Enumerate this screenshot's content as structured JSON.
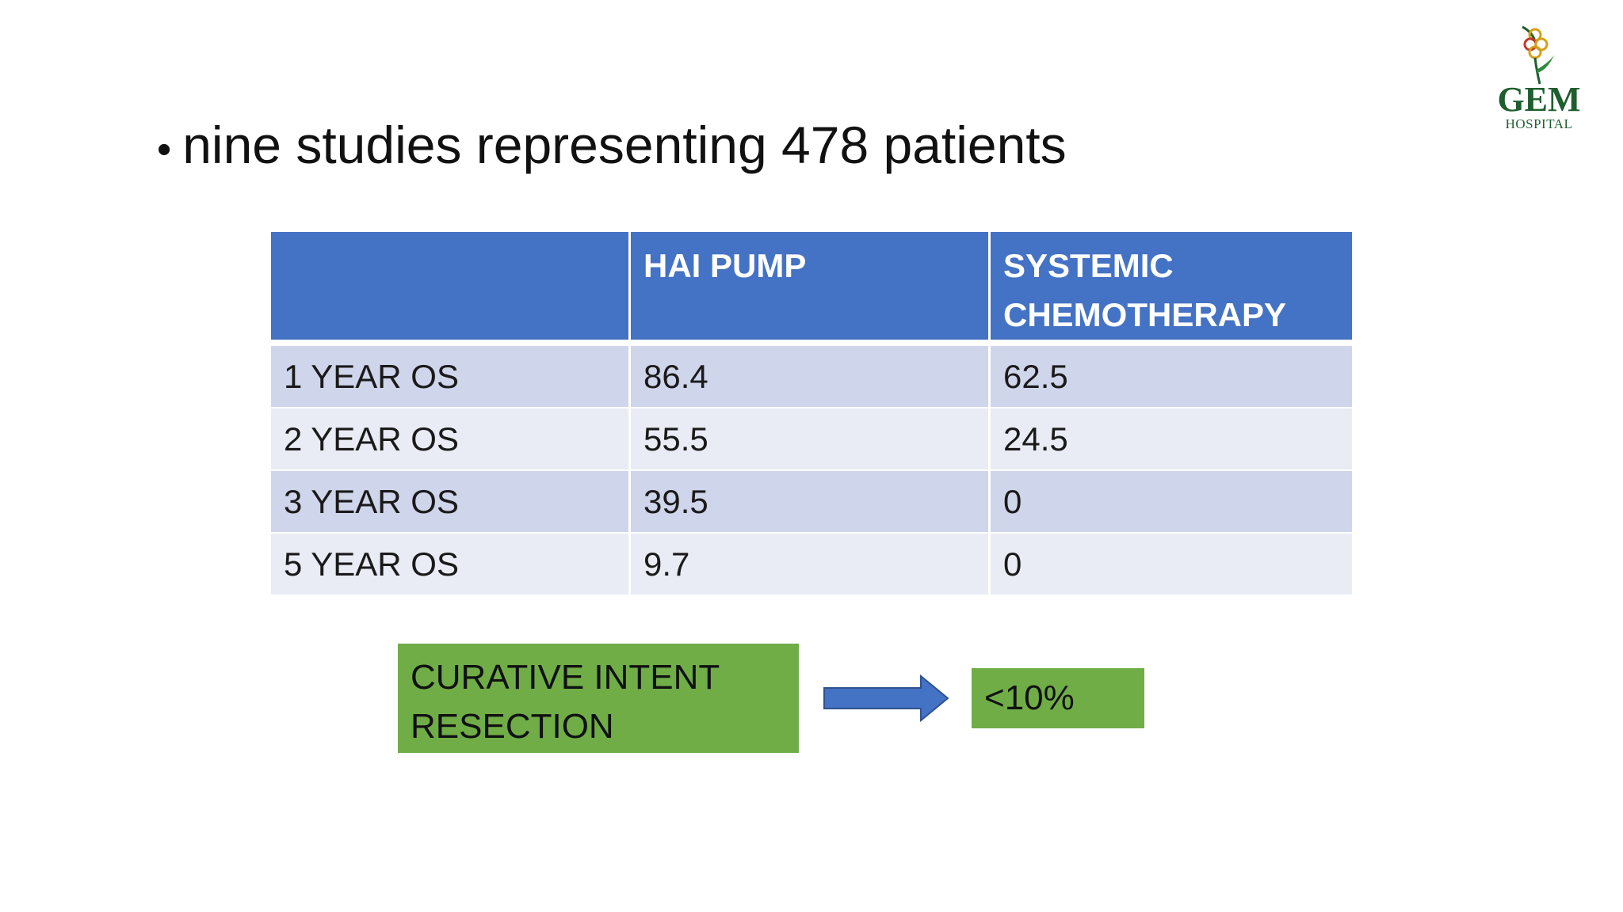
{
  "headline": {
    "bullet": "•",
    "text": "nine studies representing 478 patients"
  },
  "logo": {
    "name": "GEM",
    "subtitle": "HOSPITAL",
    "color": "#1f5e2e"
  },
  "table": {
    "headers": [
      "",
      "HAI PUMP",
      "SYSTEMIC CHEMOTHERAPY"
    ],
    "header_color": "#4472c4",
    "rows": [
      {
        "label": "1 YEAR OS",
        "hai": "86.4",
        "systemic": "62.5"
      },
      {
        "label": "2 YEAR OS",
        "hai": "55.5",
        "systemic": "24.5"
      },
      {
        "label": "3 YEAR OS",
        "hai": "39.5",
        "systemic": "0"
      },
      {
        "label": "5 YEAR OS",
        "hai": "9.7",
        "systemic": "0"
      }
    ]
  },
  "flow": {
    "source_label": "CURATIVE INTENT RESECTION",
    "result_label": "<10%",
    "box_color": "#70ad47",
    "arrow_color": "#4472c4",
    "arrow_icon": "right-arrow-icon"
  }
}
